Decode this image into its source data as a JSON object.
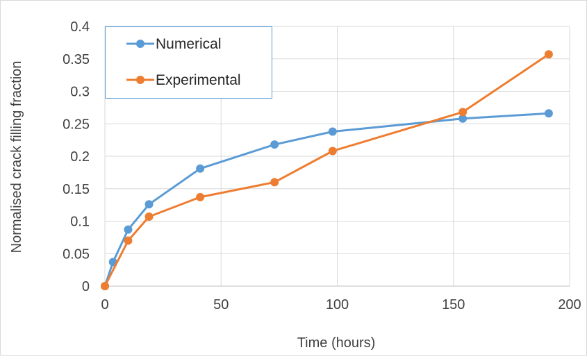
{
  "chart_data": {
    "type": "line",
    "title": "",
    "xlabel": "Time (hours)",
    "ylabel": "Normalised crack filling fraction",
    "xlim": [
      0,
      200
    ],
    "ylim": [
      0,
      0.4
    ],
    "xticks": [
      "0",
      "50",
      "100",
      "150",
      "200"
    ],
    "yticks": [
      "0",
      "0.05",
      "0.1",
      "0.15",
      "0.2",
      "0.25",
      "0.3",
      "0.35",
      "0.4"
    ],
    "grid": true,
    "legend_position": "top-left",
    "series": [
      {
        "name": "Numerical",
        "color": "#5B9BD5",
        "x": [
          0,
          3.5,
          10,
          19,
          41,
          73,
          98,
          154,
          191
        ],
        "y": [
          0,
          0.037,
          0.087,
          0.126,
          0.181,
          0.218,
          0.238,
          0.258,
          0.266
        ]
      },
      {
        "name": "Experimental",
        "color": "#ED7D31",
        "x": [
          0,
          10,
          19,
          41,
          73,
          98,
          154,
          191
        ],
        "y": [
          0,
          0.07,
          0.107,
          0.137,
          0.16,
          0.208,
          0.268,
          0.357
        ]
      }
    ]
  }
}
